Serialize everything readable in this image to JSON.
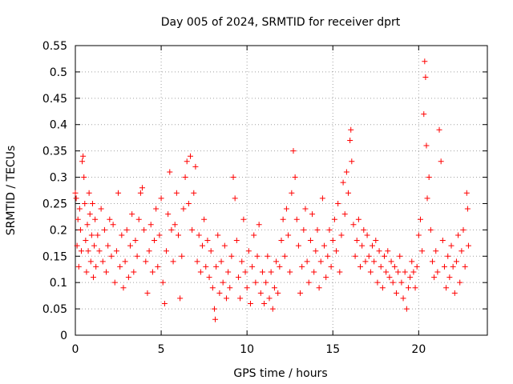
{
  "chart_data": {
    "type": "scatter",
    "title": "Day 005 of 2024, SRMTID for receiver dprt",
    "xlabel": "GPS time / hours",
    "ylabel": "SRMTID / TECUs",
    "xlim": [
      0,
      24
    ],
    "ylim": [
      0,
      0.55
    ],
    "x_ticks": [
      0,
      5,
      10,
      15,
      20
    ],
    "x_tick_labels": [
      "0",
      "5",
      "10",
      "15",
      "20"
    ],
    "y_ticks": [
      0,
      0.05,
      0.1,
      0.15,
      0.2,
      0.25,
      0.3,
      0.35,
      0.4,
      0.45,
      0.5,
      0.55
    ],
    "y_tick_labels": [
      "0",
      "0.05",
      "0.1",
      "0.15",
      "0.2",
      "0.25",
      "0.3",
      "0.35",
      "0.4",
      "0.45",
      "0.5",
      "0.55"
    ],
    "grid": true,
    "marker": "+",
    "series_color": "#ff0000",
    "series": [
      {
        "name": "SRMTID",
        "points": [
          [
            0.0,
            0.27
          ],
          [
            0.05,
            0.26
          ],
          [
            0.1,
            0.17
          ],
          [
            0.15,
            0.22
          ],
          [
            0.2,
            0.13
          ],
          [
            0.25,
            0.24
          ],
          [
            0.3,
            0.2
          ],
          [
            0.35,
            0.16
          ],
          [
            0.4,
            0.33
          ],
          [
            0.45,
            0.34
          ],
          [
            0.5,
            0.3
          ],
          [
            0.55,
            0.25
          ],
          [
            0.6,
            0.18
          ],
          [
            0.65,
            0.12
          ],
          [
            0.7,
            0.21
          ],
          [
            0.75,
            0.16
          ],
          [
            0.8,
            0.27
          ],
          [
            0.85,
            0.23
          ],
          [
            0.9,
            0.14
          ],
          [
            0.95,
            0.19
          ],
          [
            1.0,
            0.25
          ],
          [
            1.05,
            0.11
          ],
          [
            1.1,
            0.17
          ],
          [
            1.15,
            0.22
          ],
          [
            1.2,
            0.13
          ],
          [
            1.3,
            0.19
          ],
          [
            1.4,
            0.16
          ],
          [
            1.5,
            0.24
          ],
          [
            1.6,
            0.14
          ],
          [
            1.7,
            0.2
          ],
          [
            1.8,
            0.12
          ],
          [
            1.9,
            0.17
          ],
          [
            2.0,
            0.22
          ],
          [
            2.1,
            0.15
          ],
          [
            2.2,
            0.21
          ],
          [
            2.3,
            0.1
          ],
          [
            2.4,
            0.16
          ],
          [
            2.5,
            0.27
          ],
          [
            2.6,
            0.13
          ],
          [
            2.7,
            0.19
          ],
          [
            2.8,
            0.09
          ],
          [
            2.9,
            0.14
          ],
          [
            3.0,
            0.2
          ],
          [
            3.1,
            0.11
          ],
          [
            3.2,
            0.17
          ],
          [
            3.3,
            0.23
          ],
          [
            3.4,
            0.12
          ],
          [
            3.5,
            0.18
          ],
          [
            3.6,
            0.15
          ],
          [
            3.7,
            0.22
          ],
          [
            3.8,
            0.27
          ],
          [
            3.9,
            0.28
          ],
          [
            4.0,
            0.2
          ],
          [
            4.1,
            0.14
          ],
          [
            4.2,
            0.08
          ],
          [
            4.3,
            0.16
          ],
          [
            4.4,
            0.21
          ],
          [
            4.5,
            0.12
          ],
          [
            4.6,
            0.18
          ],
          [
            4.7,
            0.24
          ],
          [
            4.8,
            0.13
          ],
          [
            4.9,
            0.19
          ],
          [
            5.0,
            0.26
          ],
          [
            5.1,
            0.1
          ],
          [
            5.2,
            0.06
          ],
          [
            5.3,
            0.16
          ],
          [
            5.4,
            0.23
          ],
          [
            5.5,
            0.31
          ],
          [
            5.6,
            0.2
          ],
          [
            5.7,
            0.14
          ],
          [
            5.8,
            0.21
          ],
          [
            5.9,
            0.27
          ],
          [
            6.0,
            0.19
          ],
          [
            6.1,
            0.07
          ],
          [
            6.2,
            0.15
          ],
          [
            6.3,
            0.24
          ],
          [
            6.4,
            0.3
          ],
          [
            6.5,
            0.33
          ],
          [
            6.6,
            0.25
          ],
          [
            6.7,
            0.34
          ],
          [
            6.8,
            0.2
          ],
          [
            6.9,
            0.27
          ],
          [
            7.0,
            0.32
          ],
          [
            7.1,
            0.14
          ],
          [
            7.2,
            0.19
          ],
          [
            7.3,
            0.12
          ],
          [
            7.4,
            0.17
          ],
          [
            7.5,
            0.22
          ],
          [
            7.6,
            0.13
          ],
          [
            7.7,
            0.18
          ],
          [
            7.8,
            0.11
          ],
          [
            7.9,
            0.16
          ],
          [
            8.0,
            0.09
          ],
          [
            8.1,
            0.05
          ],
          [
            8.15,
            0.03
          ],
          [
            8.2,
            0.13
          ],
          [
            8.3,
            0.19
          ],
          [
            8.4,
            0.08
          ],
          [
            8.5,
            0.14
          ],
          [
            8.6,
            0.1
          ],
          [
            8.7,
            0.17
          ],
          [
            8.8,
            0.07
          ],
          [
            8.9,
            0.12
          ],
          [
            9.0,
            0.09
          ],
          [
            9.1,
            0.15
          ],
          [
            9.2,
            0.3
          ],
          [
            9.3,
            0.26
          ],
          [
            9.4,
            0.18
          ],
          [
            9.5,
            0.11
          ],
          [
            9.6,
            0.07
          ],
          [
            9.7,
            0.14
          ],
          [
            9.8,
            0.22
          ],
          [
            9.9,
            0.12
          ],
          [
            10.0,
            0.09
          ],
          [
            10.1,
            0.16
          ],
          [
            10.2,
            0.06
          ],
          [
            10.3,
            0.13
          ],
          [
            10.4,
            0.19
          ],
          [
            10.5,
            0.1
          ],
          [
            10.6,
            0.15
          ],
          [
            10.7,
            0.21
          ],
          [
            10.8,
            0.08
          ],
          [
            10.9,
            0.12
          ],
          [
            11.0,
            0.06
          ],
          [
            11.1,
            0.1
          ],
          [
            11.2,
            0.15
          ],
          [
            11.3,
            0.07
          ],
          [
            11.4,
            0.12
          ],
          [
            11.5,
            0.05
          ],
          [
            11.6,
            0.09
          ],
          [
            11.7,
            0.14
          ],
          [
            11.8,
            0.08
          ],
          [
            11.9,
            0.13
          ],
          [
            12.0,
            0.18
          ],
          [
            12.1,
            0.22
          ],
          [
            12.2,
            0.15
          ],
          [
            12.3,
            0.24
          ],
          [
            12.4,
            0.19
          ],
          [
            12.5,
            0.12
          ],
          [
            12.6,
            0.27
          ],
          [
            12.7,
            0.35
          ],
          [
            12.8,
            0.3
          ],
          [
            12.9,
            0.22
          ],
          [
            13.0,
            0.17
          ],
          [
            13.1,
            0.08
          ],
          [
            13.2,
            0.13
          ],
          [
            13.3,
            0.2
          ],
          [
            13.4,
            0.24
          ],
          [
            13.5,
            0.14
          ],
          [
            13.6,
            0.1
          ],
          [
            13.7,
            0.18
          ],
          [
            13.8,
            0.23
          ],
          [
            13.9,
            0.12
          ],
          [
            14.0,
            0.16
          ],
          [
            14.1,
            0.2
          ],
          [
            14.2,
            0.09
          ],
          [
            14.3,
            0.14
          ],
          [
            14.4,
            0.26
          ],
          [
            14.5,
            0.17
          ],
          [
            14.6,
            0.11
          ],
          [
            14.7,
            0.15
          ],
          [
            14.8,
            0.2
          ],
          [
            14.9,
            0.13
          ],
          [
            15.0,
            0.18
          ],
          [
            15.1,
            0.22
          ],
          [
            15.2,
            0.16
          ],
          [
            15.3,
            0.25
          ],
          [
            15.4,
            0.12
          ],
          [
            15.5,
            0.19
          ],
          [
            15.6,
            0.29
          ],
          [
            15.7,
            0.23
          ],
          [
            15.8,
            0.31
          ],
          [
            15.9,
            0.27
          ],
          [
            16.0,
            0.37
          ],
          [
            16.05,
            0.39
          ],
          [
            16.1,
            0.33
          ],
          [
            16.2,
            0.21
          ],
          [
            16.3,
            0.15
          ],
          [
            16.4,
            0.18
          ],
          [
            16.5,
            0.22
          ],
          [
            16.6,
            0.13
          ],
          [
            16.7,
            0.17
          ],
          [
            16.8,
            0.2
          ],
          [
            16.9,
            0.14
          ],
          [
            17.0,
            0.19
          ],
          [
            17.1,
            0.15
          ],
          [
            17.2,
            0.12
          ],
          [
            17.3,
            0.17
          ],
          [
            17.4,
            0.14
          ],
          [
            17.5,
            0.18
          ],
          [
            17.6,
            0.1
          ],
          [
            17.7,
            0.16
          ],
          [
            17.8,
            0.13
          ],
          [
            17.9,
            0.09
          ],
          [
            18.0,
            0.15
          ],
          [
            18.1,
            0.12
          ],
          [
            18.2,
            0.16
          ],
          [
            18.3,
            0.11
          ],
          [
            18.4,
            0.14
          ],
          [
            18.5,
            0.1
          ],
          [
            18.6,
            0.13
          ],
          [
            18.7,
            0.08
          ],
          [
            18.8,
            0.12
          ],
          [
            18.9,
            0.15
          ],
          [
            19.0,
            0.1
          ],
          [
            19.1,
            0.07
          ],
          [
            19.2,
            0.12
          ],
          [
            19.3,
            0.05
          ],
          [
            19.4,
            0.09
          ],
          [
            19.5,
            0.11
          ],
          [
            19.6,
            0.14
          ],
          [
            19.7,
            0.12
          ],
          [
            19.8,
            0.09
          ],
          [
            19.9,
            0.13
          ],
          [
            20.0,
            0.19
          ],
          [
            20.1,
            0.22
          ],
          [
            20.2,
            0.16
          ],
          [
            20.3,
            0.42
          ],
          [
            20.35,
            0.52
          ],
          [
            20.4,
            0.49
          ],
          [
            20.45,
            0.36
          ],
          [
            20.5,
            0.26
          ],
          [
            20.6,
            0.3
          ],
          [
            20.7,
            0.2
          ],
          [
            20.8,
            0.14
          ],
          [
            20.9,
            0.11
          ],
          [
            21.0,
            0.16
          ],
          [
            21.1,
            0.12
          ],
          [
            21.2,
            0.39
          ],
          [
            21.3,
            0.33
          ],
          [
            21.4,
            0.18
          ],
          [
            21.5,
            0.13
          ],
          [
            21.6,
            0.09
          ],
          [
            21.7,
            0.15
          ],
          [
            21.8,
            0.11
          ],
          [
            21.9,
            0.17
          ],
          [
            22.0,
            0.13
          ],
          [
            22.1,
            0.08
          ],
          [
            22.2,
            0.14
          ],
          [
            22.3,
            0.19
          ],
          [
            22.4,
            0.1
          ],
          [
            22.5,
            0.16
          ],
          [
            22.6,
            0.2
          ],
          [
            22.7,
            0.13
          ],
          [
            22.8,
            0.27
          ],
          [
            22.85,
            0.24
          ],
          [
            22.9,
            0.17
          ]
        ]
      }
    ]
  }
}
